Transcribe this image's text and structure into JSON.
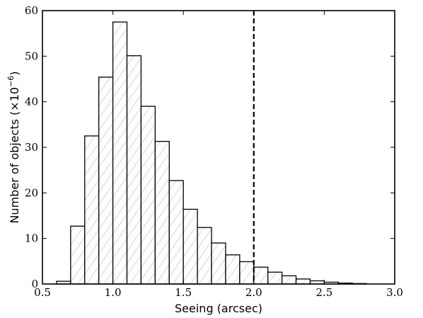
{
  "chart_data": {
    "type": "bar",
    "title": "",
    "xlabel": "Seeing (arcsec)",
    "ylabel_main": "Number of objects ",
    "ylabel_unit": "(×10",
    "ylabel_exponent": "−6",
    "ylabel_close": ")",
    "xlim": [
      0.5,
      3.0
    ],
    "ylim": [
      0,
      60
    ],
    "xticks": [
      0.5,
      1.0,
      1.5,
      2.0,
      2.5,
      3.0
    ],
    "xtick_labels": [
      "0.5",
      "1.0",
      "1.5",
      "2.0",
      "2.5",
      "3.0"
    ],
    "yticks": [
      0,
      10,
      20,
      30,
      40,
      50,
      60
    ],
    "ytick_labels": [
      "0",
      "10",
      "20",
      "30",
      "40",
      "50",
      "60"
    ],
    "bin_width": 0.1,
    "bins": [
      {
        "left": 0.6,
        "value": 0.6
      },
      {
        "left": 0.7,
        "value": 12.7
      },
      {
        "left": 0.8,
        "value": 32.5
      },
      {
        "left": 0.9,
        "value": 45.4
      },
      {
        "left": 1.0,
        "value": 57.5
      },
      {
        "left": 1.1,
        "value": 50.1
      },
      {
        "left": 1.2,
        "value": 39.0
      },
      {
        "left": 1.3,
        "value": 31.3
      },
      {
        "left": 1.4,
        "value": 22.7
      },
      {
        "left": 1.5,
        "value": 16.4
      },
      {
        "left": 1.6,
        "value": 12.4
      },
      {
        "left": 1.7,
        "value": 9.0
      },
      {
        "left": 1.8,
        "value": 6.4
      },
      {
        "left": 1.9,
        "value": 4.9
      },
      {
        "left": 2.0,
        "value": 3.7
      },
      {
        "left": 2.1,
        "value": 2.6
      },
      {
        "left": 2.2,
        "value": 1.8
      },
      {
        "left": 2.3,
        "value": 1.1
      },
      {
        "left": 2.4,
        "value": 0.7
      },
      {
        "left": 2.5,
        "value": 0.4
      },
      {
        "left": 2.6,
        "value": 0.2
      },
      {
        "left": 2.7,
        "value": 0.1
      }
    ],
    "reference_line": {
      "x": 2.0,
      "style": "dashed",
      "color": "#000000"
    },
    "bar_fill": "hatched",
    "grid": false,
    "legend": "none"
  }
}
